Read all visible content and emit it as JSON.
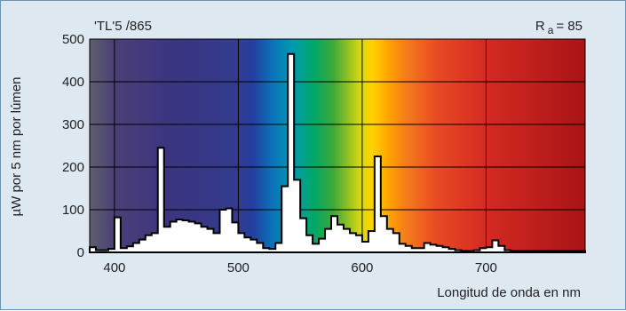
{
  "chart_data": {
    "type": "area",
    "title": "'TL'5 /865",
    "annotation": {
      "prefix": "R",
      "subscript": "a",
      "suffix": "= 85"
    },
    "xlabel": "Longitud de onda en nm",
    "ylabel": "µW por 5 nm por lúmen",
    "xlim": [
      380,
      780
    ],
    "ylim": [
      0,
      500
    ],
    "x_ticks": [
      400,
      500,
      600,
      700
    ],
    "y_ticks": [
      0,
      100,
      200,
      300,
      400,
      500
    ],
    "grid": true,
    "background": "visible spectrum gradient",
    "series": [
      {
        "step": 5,
        "x": [
          380,
          385,
          390,
          395,
          400,
          405,
          410,
          415,
          420,
          425,
          430,
          435,
          440,
          445,
          450,
          455,
          460,
          465,
          470,
          475,
          480,
          485,
          490,
          495,
          500,
          505,
          510,
          515,
          520,
          525,
          530,
          535,
          540,
          545,
          550,
          555,
          560,
          565,
          570,
          575,
          580,
          585,
          590,
          595,
          600,
          605,
          610,
          615,
          620,
          625,
          630,
          635,
          640,
          645,
          650,
          655,
          660,
          665,
          670,
          675,
          680,
          685,
          690,
          695,
          700,
          705,
          710,
          715,
          720,
          725,
          730,
          735,
          740,
          745,
          750,
          755,
          760,
          765,
          770,
          775
        ],
        "values": [
          12,
          5,
          5,
          8,
          82,
          10,
          14,
          22,
          30,
          40,
          45,
          245,
          60,
          72,
          77,
          75,
          72,
          68,
          60,
          55,
          45,
          100,
          103,
          70,
          45,
          35,
          30,
          22,
          10,
          8,
          22,
          155,
          465,
          170,
          80,
          40,
          20,
          32,
          55,
          85,
          65,
          55,
          45,
          40,
          25,
          50,
          225,
          85,
          55,
          45,
          20,
          15,
          10,
          10,
          22,
          18,
          15,
          12,
          8,
          5,
          3,
          3,
          5,
          10,
          12,
          28,
          15,
          5,
          3,
          3,
          3,
          3,
          3,
          3,
          3,
          3,
          3,
          3,
          3,
          3
        ]
      }
    ]
  }
}
